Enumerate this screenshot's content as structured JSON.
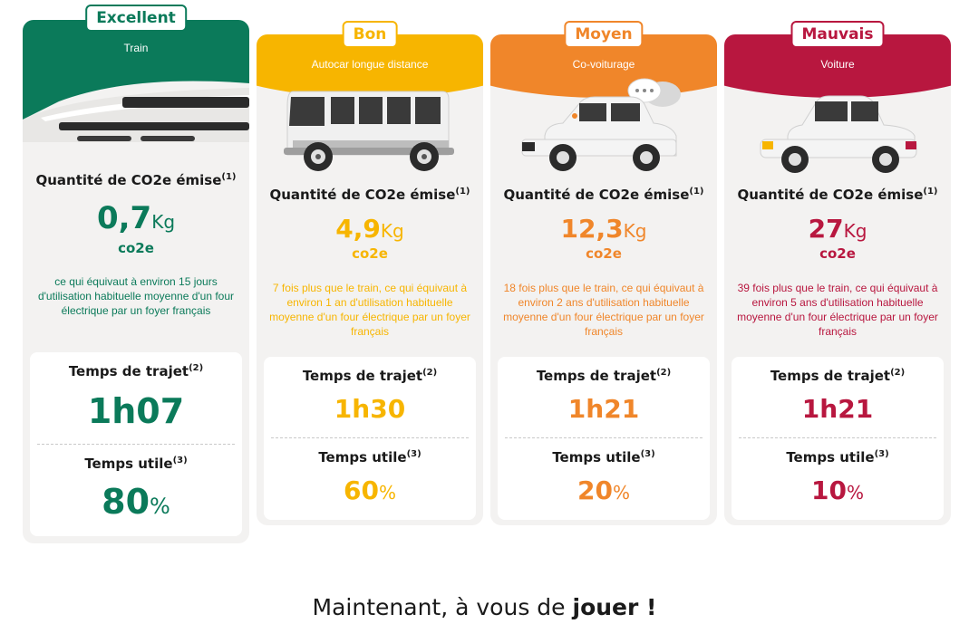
{
  "colors": {
    "excellent": "#0b7a5a",
    "bon": "#f7b500",
    "moyen": "#f0862a",
    "mauvais": "#b8173f",
    "card_bg": "#f3f2f1"
  },
  "cards": [
    {
      "rating": "Excellent",
      "mode": "Train",
      "icon": "train-icon",
      "co2_title": "Quantité de CO2e émise",
      "co2_title_note": "(1)",
      "co2_value": "0,7",
      "co2_unit": "Kg",
      "co2_unit2": "co2e",
      "equivalent": "ce qui équivaut à environ 15 jours d'utilisation habituelle moyenne d'un four électrique par un foyer français",
      "travel_time_label": "Temps de trajet",
      "travel_time_note": "(2)",
      "travel_time": "1h07",
      "useful_time_label": "Temps utile",
      "useful_time_note": "(3)",
      "useful_time": "80",
      "useful_time_unit": "%"
    },
    {
      "rating": "Bon",
      "mode": "Autocar longue distance",
      "icon": "bus-icon",
      "co2_title": "Quantité de CO2e émise",
      "co2_title_note": "(1)",
      "co2_value": "4,9",
      "co2_unit": "Kg",
      "co2_unit2": "co2e",
      "equivalent": "7 fois plus que le train, ce qui équivaut à environ 1 an d'utilisation habituelle moyenne d'un four électrique par un foyer français",
      "travel_time_label": "Temps de trajet",
      "travel_time_note": "(2)",
      "travel_time": "1h30",
      "useful_time_label": "Temps utile",
      "useful_time_note": "(3)",
      "useful_time": "60",
      "useful_time_unit": "%"
    },
    {
      "rating": "Moyen",
      "mode": "Co-voiturage",
      "icon": "carpool-icon",
      "co2_title": "Quantité de CO2e émise",
      "co2_title_note": "(1)",
      "co2_value": "12,3",
      "co2_unit": "Kg",
      "co2_unit2": "co2e",
      "equivalent": "18 fois plus que le train, ce qui équivaut à environ 2 ans d'utilisation habituelle moyenne d'un four électrique par un foyer français",
      "travel_time_label": "Temps de trajet",
      "travel_time_note": "(2)",
      "travel_time": "1h21",
      "useful_time_label": "Temps utile",
      "useful_time_note": "(3)",
      "useful_time": "20",
      "useful_time_unit": "%"
    },
    {
      "rating": "Mauvais",
      "mode": "Voiture",
      "icon": "car-icon",
      "co2_title": "Quantité de CO2e émise",
      "co2_title_note": "(1)",
      "co2_value": "27",
      "co2_unit": "Kg",
      "co2_unit2": "co2e",
      "equivalent": "39 fois plus que le train, ce qui équivaut à environ 5 ans d'utilisation habituelle moyenne d'un four électrique par un foyer français",
      "travel_time_label": "Temps de trajet",
      "travel_time_note": "(2)",
      "travel_time": "1h21",
      "useful_time_label": "Temps utile",
      "useful_time_note": "(3)",
      "useful_time": "10",
      "useful_time_unit": "%"
    }
  ],
  "cta": {
    "prefix": "Maintenant, à vous de ",
    "emphasis": "jouer",
    "suffix": " !"
  }
}
